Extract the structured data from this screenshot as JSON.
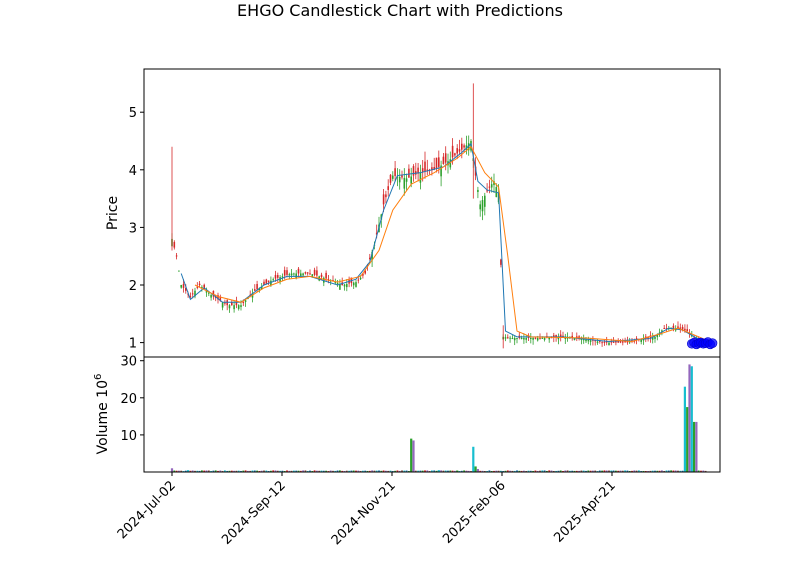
{
  "chart_data": [
    {
      "type": "candlestick",
      "title": "EHGO Candlestick Chart with Predictions",
      "xlabel": "",
      "ylabel": "Price",
      "x_tick_labels": [
        "2024-Jul-02",
        "2024-Sep-12",
        "2024-Nov-21",
        "2025-Feb-06",
        "2025-Apr-21"
      ],
      "y_ticks": [
        1,
        2,
        3,
        4,
        5
      ],
      "ylim": [
        0.75,
        5.75
      ],
      "grid": false,
      "colors": {
        "up": "#2ca02c",
        "down": "#d62728",
        "ma_short": "#1f77b4",
        "ma_long": "#ff7f0e",
        "prediction": "#0000ff"
      },
      "price_path": [
        [
          0,
          2.8
        ],
        [
          2,
          2.5
        ],
        [
          4,
          2.0
        ],
        [
          8,
          1.8
        ],
        [
          12,
          2.0
        ],
        [
          18,
          1.8
        ],
        [
          24,
          1.65
        ],
        [
          30,
          1.65
        ],
        [
          36,
          1.9
        ],
        [
          44,
          2.1
        ],
        [
          52,
          2.2
        ],
        [
          60,
          2.2
        ],
        [
          68,
          2.1
        ],
        [
          74,
          2.0
        ],
        [
          80,
          2.05
        ],
        [
          84,
          2.2
        ],
        [
          88,
          2.7
        ],
        [
          92,
          3.4
        ],
        [
          96,
          3.9
        ],
        [
          102,
          3.85
        ],
        [
          108,
          3.95
        ],
        [
          114,
          4.0
        ],
        [
          120,
          4.15
        ],
        [
          126,
          4.35
        ],
        [
          130,
          4.5
        ],
        [
          132,
          3.9
        ],
        [
          134,
          3.4
        ],
        [
          138,
          3.7
        ],
        [
          140,
          3.8
        ],
        [
          142,
          3.6
        ],
        [
          144,
          1.1
        ],
        [
          148,
          1.08
        ],
        [
          160,
          1.08
        ],
        [
          172,
          1.1
        ],
        [
          180,
          1.05
        ],
        [
          188,
          1.0
        ],
        [
          196,
          1.0
        ],
        [
          204,
          1.05
        ],
        [
          210,
          1.1
        ],
        [
          214,
          1.25
        ],
        [
          220,
          1.25
        ],
        [
          224,
          1.2
        ],
        [
          228,
          1.05
        ],
        [
          232,
          1.0
        ]
      ],
      "ma_short": [
        [
          4,
          2.2
        ],
        [
          8,
          1.75
        ],
        [
          14,
          1.95
        ],
        [
          22,
          1.7
        ],
        [
          30,
          1.7
        ],
        [
          40,
          2.0
        ],
        [
          50,
          2.15
        ],
        [
          60,
          2.15
        ],
        [
          72,
          2.0
        ],
        [
          80,
          2.1
        ],
        [
          86,
          2.4
        ],
        [
          92,
          3.3
        ],
        [
          98,
          3.9
        ],
        [
          108,
          3.95
        ],
        [
          118,
          4.05
        ],
        [
          126,
          4.3
        ],
        [
          130,
          4.45
        ],
        [
          133,
          3.8
        ],
        [
          137,
          3.65
        ],
        [
          142,
          3.6
        ],
        [
          145,
          1.2
        ],
        [
          150,
          1.1
        ],
        [
          170,
          1.1
        ],
        [
          190,
          1.02
        ],
        [
          208,
          1.07
        ],
        [
          216,
          1.25
        ],
        [
          222,
          1.22
        ],
        [
          228,
          1.08
        ],
        [
          232,
          1.05
        ]
      ],
      "ma_long": [
        [
          10,
          2.0
        ],
        [
          20,
          1.8
        ],
        [
          30,
          1.7
        ],
        [
          40,
          1.95
        ],
        [
          50,
          2.1
        ],
        [
          60,
          2.15
        ],
        [
          72,
          2.05
        ],
        [
          82,
          2.15
        ],
        [
          90,
          2.6
        ],
        [
          96,
          3.3
        ],
        [
          104,
          3.75
        ],
        [
          114,
          3.95
        ],
        [
          124,
          4.2
        ],
        [
          130,
          4.4
        ],
        [
          136,
          3.95
        ],
        [
          142,
          3.7
        ],
        [
          146,
          2.5
        ],
        [
          150,
          1.2
        ],
        [
          156,
          1.1
        ],
        [
          180,
          1.08
        ],
        [
          200,
          1.02
        ],
        [
          212,
          1.15
        ],
        [
          220,
          1.25
        ],
        [
          226,
          1.15
        ],
        [
          232,
          1.05
        ]
      ],
      "predictions": [
        [
          226,
          0.98
        ],
        [
          227,
          1.0
        ],
        [
          228,
          0.97
        ],
        [
          229,
          0.99
        ],
        [
          230,
          1.0
        ],
        [
          231,
          0.98
        ],
        [
          232,
          0.99
        ],
        [
          233,
          1.01
        ],
        [
          234,
          0.97
        ],
        [
          235,
          0.99
        ]
      ]
    },
    {
      "type": "bar",
      "ylabel": "Volume  10",
      "ylabel_exponent": "6",
      "y_ticks": [
        10,
        20,
        30
      ],
      "ylim": [
        0,
        31
      ],
      "spikes": [
        [
          0,
          1.0
        ],
        [
          7,
          0.5
        ],
        [
          104,
          9.0
        ],
        [
          105,
          8.5
        ],
        [
          116,
          0.5
        ],
        [
          124,
          0.4
        ],
        [
          128,
          0.3
        ],
        [
          131,
          6.8
        ],
        [
          132,
          1.5
        ],
        [
          133,
          0.8
        ],
        [
          223,
          23.0
        ],
        [
          224,
          17.5
        ],
        [
          225,
          29.0
        ],
        [
          226,
          28.5
        ],
        [
          227,
          13.5
        ],
        [
          228,
          13.5
        ]
      ]
    }
  ]
}
